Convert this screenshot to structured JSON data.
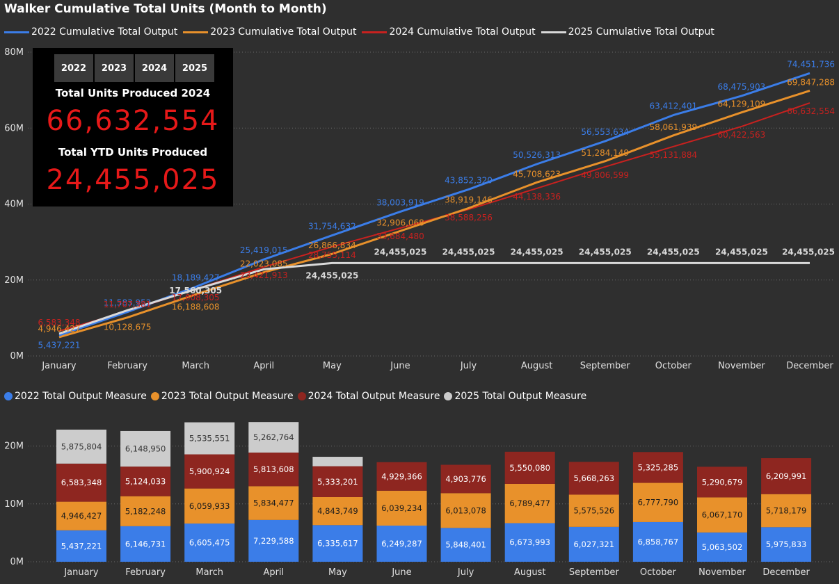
{
  "title": "Walker Cumulative Total Units (Month to Month)",
  "colors": {
    "s2022": "#3b7de8",
    "s2023": "#e8912b",
    "s2024": "#c8211f",
    "s2025": "#d9d9d9",
    "bar2024": "#8e2620",
    "bar2023": "#e8912b",
    "bar2022": "#3b7de8",
    "bar2025": "#cccccc"
  },
  "line_legend": [
    {
      "label": "2022 Cumulative Total Output",
      "color": "#3b7de8"
    },
    {
      "label": "2023 Cumulative Total Output",
      "color": "#e8912b"
    },
    {
      "label": "2024 Cumulative Total Output",
      "color": "#c8211f"
    },
    {
      "label": "2025 Cumulative Total Output",
      "color": "#d9d9d9"
    }
  ],
  "bar_legend": [
    {
      "label": "2022 Total Output Measure",
      "color": "#3b7de8"
    },
    {
      "label": "2023 Total Output Measure",
      "color": "#e8912b"
    },
    {
      "label": "2024 Total Output Measure",
      "color": "#8e2620"
    },
    {
      "label": "2025 Total Output Measure",
      "color": "#cccccc"
    }
  ],
  "kpi": {
    "tabs": [
      "2022",
      "2023",
      "2024",
      "2025"
    ],
    "total_label": "Total Units Produced 2024",
    "total_value": "66,632,554",
    "ytd_label": "Total YTD Units Produced",
    "ytd_value": "24,455,025"
  },
  "chart_data": [
    {
      "type": "line",
      "title": "Walker Cumulative Total Units (Month to Month)",
      "categories": [
        "January",
        "February",
        "March",
        "April",
        "May",
        "June",
        "July",
        "August",
        "September",
        "October",
        "November",
        "December"
      ],
      "ylim": [
        0,
        80000000
      ],
      "yticks": [
        "0M",
        "20M",
        "40M",
        "60M",
        "80M"
      ],
      "grid": true,
      "legend": "top-left",
      "series": [
        {
          "name": "2022 Cumulative Total Output",
          "values": [
            5437221,
            11583952,
            18189427,
            25419015,
            31754632,
            38003919,
            43852320,
            50526313,
            56553634,
            63412401,
            68475903,
            74451736
          ],
          "labels": [
            "5,437,221",
            "11,583,952",
            "18,189,427",
            "25,419,015",
            "31,754,632",
            "38,003,919",
            "43,852,320",
            "50,526,313",
            "56,553,634",
            "63,412,401",
            "68,475,903",
            "74,451,736"
          ]
        },
        {
          "name": "2023 Cumulative Total Output",
          "values": [
            4946427,
            10128675,
            16188608,
            22023085,
            26866834,
            32906068,
            38919146,
            45708623,
            51284149,
            58061939,
            64129109,
            69847288
          ],
          "labels": [
            "4,946,427",
            "10,128,675",
            "16,188,608",
            "22,023,085",
            "26,866,834",
            "32,906,068",
            "38,919,146",
            "45,708,623",
            "51,284,149",
            "58,061,939",
            "64,129,109",
            "69,847,288"
          ]
        },
        {
          "name": "2024 Cumulative Total Output",
          "values": [
            6583348,
            11707381,
            17608305,
            23421913,
            28755114,
            33684480,
            38588256,
            44138336,
            49806599,
            55131884,
            60422563,
            66632554
          ],
          "labels": [
            "6,583,348",
            "11,707,381",
            "17,608,305",
            "23,421,913",
            "28,755,114",
            "33,684,480",
            "38,588,256",
            "44,138,336",
            "49,806,599",
            "55,131,884",
            "60,422,563",
            "66,632,554"
          ]
        },
        {
          "name": "2025 Cumulative Total Output",
          "values": [
            5875804,
            12024754,
            17560305,
            22823069,
            24455025,
            24455025,
            24455025,
            24455025,
            24455025,
            24455025,
            24455025,
            24455025
          ],
          "labels": [
            "",
            "",
            "17,560,305",
            "",
            "24,455,025",
            "24,455,025",
            "24,455,025",
            "24,455,025",
            "24,455,025",
            "24,455,025",
            "24,455,025",
            "24,455,025"
          ]
        }
      ]
    },
    {
      "type": "bar",
      "stacked": true,
      "categories": [
        "January",
        "February",
        "March",
        "April",
        "May",
        "June",
        "July",
        "August",
        "September",
        "October",
        "November",
        "December"
      ],
      "ylim": [
        0,
        25000000
      ],
      "yticks": [
        "0M",
        "10M",
        "20M"
      ],
      "grid": true,
      "legend": "top-left",
      "series": [
        {
          "name": "2022 Total Output Measure",
          "values": [
            5437221,
            6146731,
            6605475,
            7229588,
            6335617,
            6249287,
            5848401,
            6673993,
            6027321,
            6858767,
            5063502,
            5975833
          ],
          "labels": [
            "5,437,221",
            "6,146,731",
            "6,605,475",
            "7,229,588",
            "6,335,617",
            "6,249,287",
            "5,848,401",
            "6,673,993",
            "6,027,321",
            "6,858,767",
            "5,063,502",
            "5,975,833"
          ]
        },
        {
          "name": "2023 Total Output Measure",
          "values": [
            4946427,
            5182248,
            6059933,
            5834477,
            4843749,
            6039234,
            6013078,
            6789477,
            5575526,
            6777790,
            6067170,
            5718179
          ],
          "labels": [
            "4,946,427",
            "5,182,248",
            "6,059,933",
            "5,834,477",
            "4,843,749",
            "6,039,234",
            "6,013,078",
            "6,789,477",
            "5,575,526",
            "6,777,790",
            "6,067,170",
            "5,718,179"
          ]
        },
        {
          "name": "2024 Total Output Measure",
          "values": [
            6583348,
            5124033,
            5900924,
            5813608,
            5333201,
            4929366,
            4903776,
            5550080,
            5668263,
            5325285,
            5290679,
            6209991
          ],
          "labels": [
            "6,583,348",
            "5,124,033",
            "5,900,924",
            "5,813,608",
            "5,333,201",
            "4,929,366",
            "4,903,776",
            "5,550,080",
            "5,668,263",
            "5,325,285",
            "5,290,679",
            "6,209,991"
          ]
        },
        {
          "name": "2025 Total Output Measure",
          "values": [
            5875804,
            6148950,
            5535551,
            5262764,
            1632000,
            0,
            0,
            0,
            0,
            0,
            0,
            0
          ],
          "labels": [
            "5,875,804",
            "6,148,950",
            "5,535,551",
            "5,262,764",
            "",
            "",
            "",
            "",
            "",
            "",
            "",
            ""
          ]
        }
      ]
    }
  ]
}
